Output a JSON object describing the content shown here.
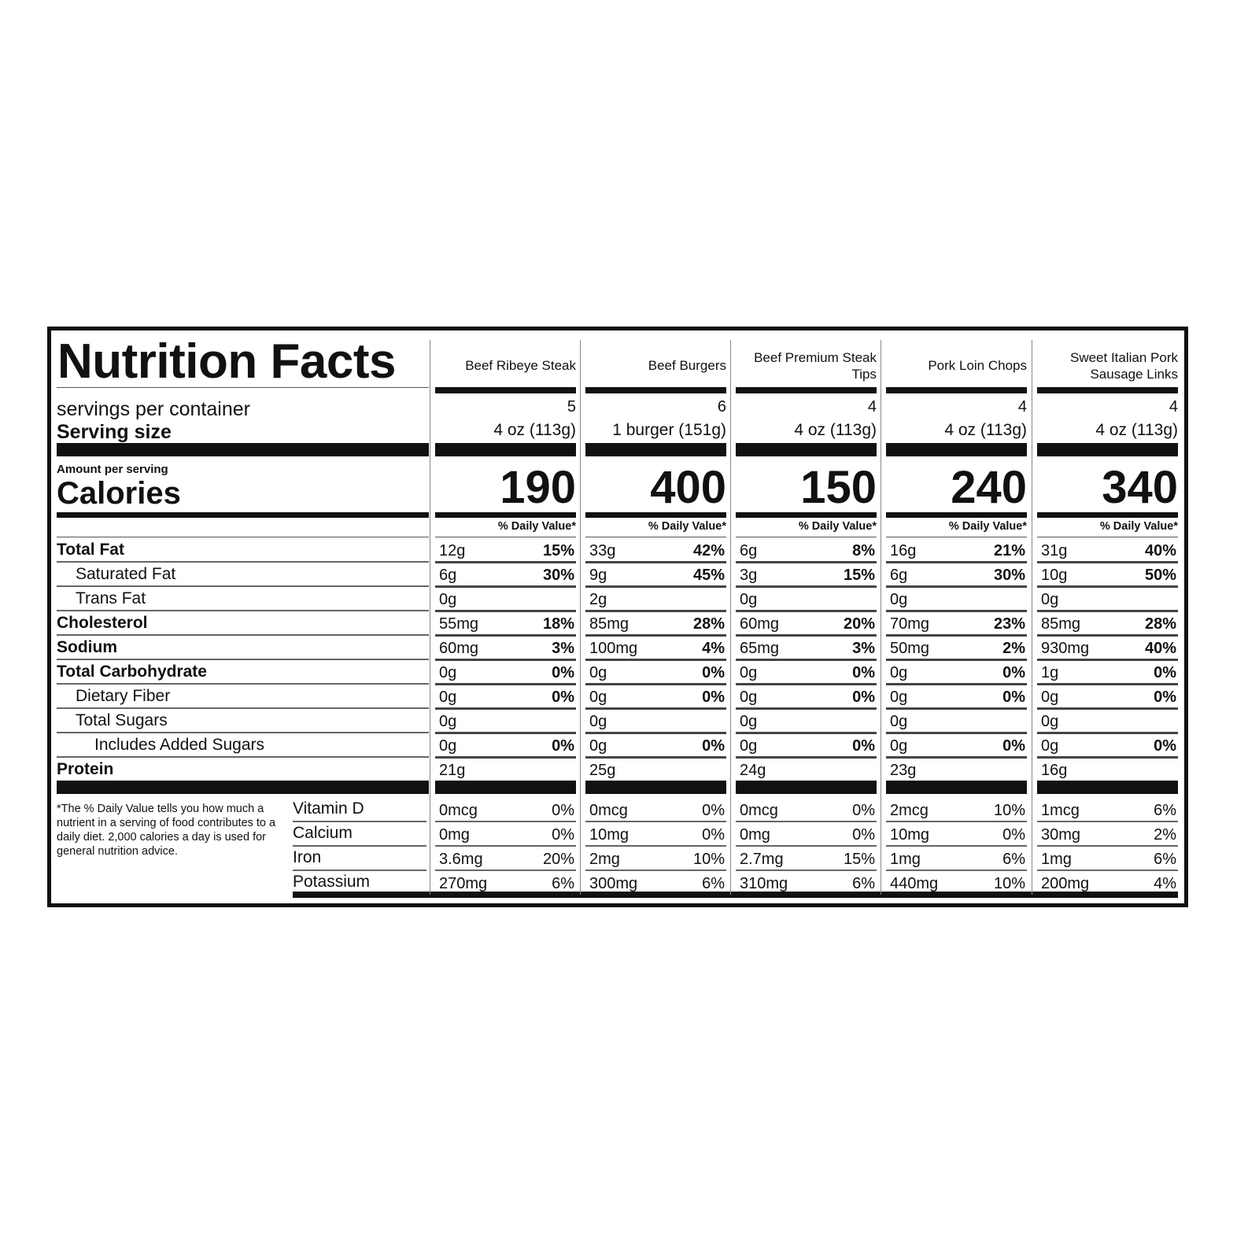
{
  "title": "Nutrition Facts",
  "labels": {
    "servings_per_container": "servings per container",
    "serving_size": "Serving size",
    "amount_per_serving": "Amount per serving",
    "calories": "Calories",
    "daily_value_header": "% Daily Value*",
    "footnote": "*The % Daily Value tells you how much a nutrient in a serving of food contributes to a daily diet. 2,000 calories a day is used for general nutrition advice."
  },
  "nutrients": [
    {
      "label": "Total Fat",
      "bold": true,
      "indent": 0
    },
    {
      "label": "Saturated Fat",
      "bold": false,
      "indent": 1
    },
    {
      "label": "Trans Fat",
      "bold": false,
      "indent": 1
    },
    {
      "label": "Cholesterol",
      "bold": true,
      "indent": 0
    },
    {
      "label": "Sodium",
      "bold": true,
      "indent": 0
    },
    {
      "label": "Total Carbohydrate",
      "bold": true,
      "indent": 0
    },
    {
      "label": "Dietary Fiber",
      "bold": false,
      "indent": 1
    },
    {
      "label": "Total Sugars",
      "bold": false,
      "indent": 1
    },
    {
      "label": "Includes Added Sugars",
      "bold": false,
      "indent": 2
    },
    {
      "label": "Protein",
      "bold": true,
      "indent": 0
    }
  ],
  "vitamins": [
    "Vitamin D",
    "Calcium",
    "Iron",
    "Potassium"
  ],
  "products": [
    {
      "name": "Beef Ribeye Steak",
      "servings": "5",
      "serving_size": "4 oz (113g)",
      "calories": "190",
      "nutrients": [
        [
          "12g",
          "15%"
        ],
        [
          "6g",
          "30%"
        ],
        [
          "0g",
          ""
        ],
        [
          "55mg",
          "18%"
        ],
        [
          "60mg",
          "3%"
        ],
        [
          "0g",
          "0%"
        ],
        [
          "0g",
          "0%"
        ],
        [
          "0g",
          ""
        ],
        [
          "0g",
          "0%"
        ],
        [
          "21g",
          ""
        ]
      ],
      "vitamins": [
        [
          "0mcg",
          "0%"
        ],
        [
          "0mg",
          "0%"
        ],
        [
          "3.6mg",
          "20%"
        ],
        [
          "270mg",
          "6%"
        ]
      ]
    },
    {
      "name": "Beef Burgers",
      "servings": "6",
      "serving_size": "1 burger (151g)",
      "calories": "400",
      "nutrients": [
        [
          "33g",
          "42%"
        ],
        [
          "9g",
          "45%"
        ],
        [
          "2g",
          ""
        ],
        [
          "85mg",
          "28%"
        ],
        [
          "100mg",
          "4%"
        ],
        [
          "0g",
          "0%"
        ],
        [
          "0g",
          "0%"
        ],
        [
          "0g",
          ""
        ],
        [
          "0g",
          "0%"
        ],
        [
          "25g",
          ""
        ]
      ],
      "vitamins": [
        [
          "0mcg",
          "0%"
        ],
        [
          "10mg",
          "0%"
        ],
        [
          "2mg",
          "10%"
        ],
        [
          "300mg",
          "6%"
        ]
      ]
    },
    {
      "name": "Beef Premium Steak Tips",
      "servings": "4",
      "serving_size": "4 oz (113g)",
      "calories": "150",
      "nutrients": [
        [
          "6g",
          "8%"
        ],
        [
          "3g",
          "15%"
        ],
        [
          "0g",
          ""
        ],
        [
          "60mg",
          "20%"
        ],
        [
          "65mg",
          "3%"
        ],
        [
          "0g",
          "0%"
        ],
        [
          "0g",
          "0%"
        ],
        [
          "0g",
          ""
        ],
        [
          "0g",
          "0%"
        ],
        [
          "24g",
          ""
        ]
      ],
      "vitamins": [
        [
          "0mcg",
          "0%"
        ],
        [
          "0mg",
          "0%"
        ],
        [
          "2.7mg",
          "15%"
        ],
        [
          "310mg",
          "6%"
        ]
      ]
    },
    {
      "name": "Pork Loin Chops",
      "servings": "4",
      "serving_size": "4 oz (113g)",
      "calories": "240",
      "nutrients": [
        [
          "16g",
          "21%"
        ],
        [
          "6g",
          "30%"
        ],
        [
          "0g",
          ""
        ],
        [
          "70mg",
          "23%"
        ],
        [
          "50mg",
          "2%"
        ],
        [
          "0g",
          "0%"
        ],
        [
          "0g",
          "0%"
        ],
        [
          "0g",
          ""
        ],
        [
          "0g",
          "0%"
        ],
        [
          "23g",
          ""
        ]
      ],
      "vitamins": [
        [
          "2mcg",
          "10%"
        ],
        [
          "10mg",
          "0%"
        ],
        [
          "1mg",
          "6%"
        ],
        [
          "440mg",
          "10%"
        ]
      ]
    },
    {
      "name": "Sweet Italian Pork Sausage Links",
      "servings": "4",
      "serving_size": "4 oz (113g)",
      "calories": "340",
      "nutrients": [
        [
          "31g",
          "40%"
        ],
        [
          "10g",
          "50%"
        ],
        [
          "0g",
          ""
        ],
        [
          "85mg",
          "28%"
        ],
        [
          "930mg",
          "40%"
        ],
        [
          "1g",
          "0%"
        ],
        [
          "0g",
          "0%"
        ],
        [
          "0g",
          ""
        ],
        [
          "0g",
          "0%"
        ],
        [
          "16g",
          ""
        ]
      ],
      "vitamins": [
        [
          "1mcg",
          "6%"
        ],
        [
          "30mg",
          "2%"
        ],
        [
          "1mg",
          "6%"
        ],
        [
          "200mg",
          "4%"
        ]
      ]
    }
  ]
}
